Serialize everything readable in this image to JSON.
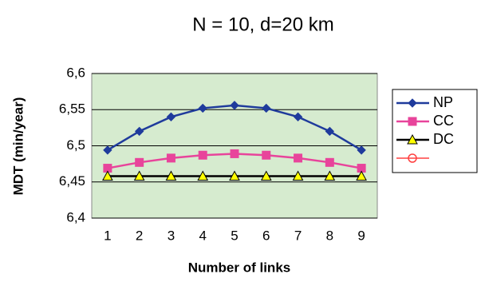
{
  "chart_data": {
    "type": "line",
    "title": "N = 10,  d=20 km",
    "x_label": "Number of links",
    "y_label": "MDT (min/year)",
    "categories": [
      "1",
      "2",
      "3",
      "4",
      "5",
      "6",
      "7",
      "8",
      "9"
    ],
    "series": [
      {
        "name": "NP",
        "color": "#1f3b9c",
        "marker": "diamond",
        "marker_fill": "#1f3b9c",
        "values": [
          6.494,
          6.52,
          6.54,
          6.552,
          6.556,
          6.552,
          6.54,
          6.52,
          6.494
        ]
      },
      {
        "name": "CC",
        "color": "#e8449b",
        "marker": "square",
        "marker_fill": "#e8449b",
        "values": [
          6.469,
          6.477,
          6.483,
          6.487,
          6.489,
          6.487,
          6.483,
          6.477,
          6.469
        ]
      },
      {
        "name": "DC",
        "color": "#000000",
        "marker": "triangle",
        "marker_fill": "#ffff00",
        "values": [
          6.458,
          6.458,
          6.458,
          6.458,
          6.458,
          6.458,
          6.458,
          6.458,
          6.458
        ]
      }
    ],
    "ylim": [
      6.4,
      6.6
    ],
    "yticks": [
      {
        "value": 6.4,
        "label": "6,4"
      },
      {
        "value": 6.45,
        "label": "6,45"
      },
      {
        "value": 6.5,
        "label": "6,5"
      },
      {
        "value": 6.55,
        "label": "6,55"
      },
      {
        "value": 6.6,
        "label": "6,6"
      }
    ],
    "grid": true,
    "plot_background": "#d6ebcf",
    "legend": "right"
  }
}
